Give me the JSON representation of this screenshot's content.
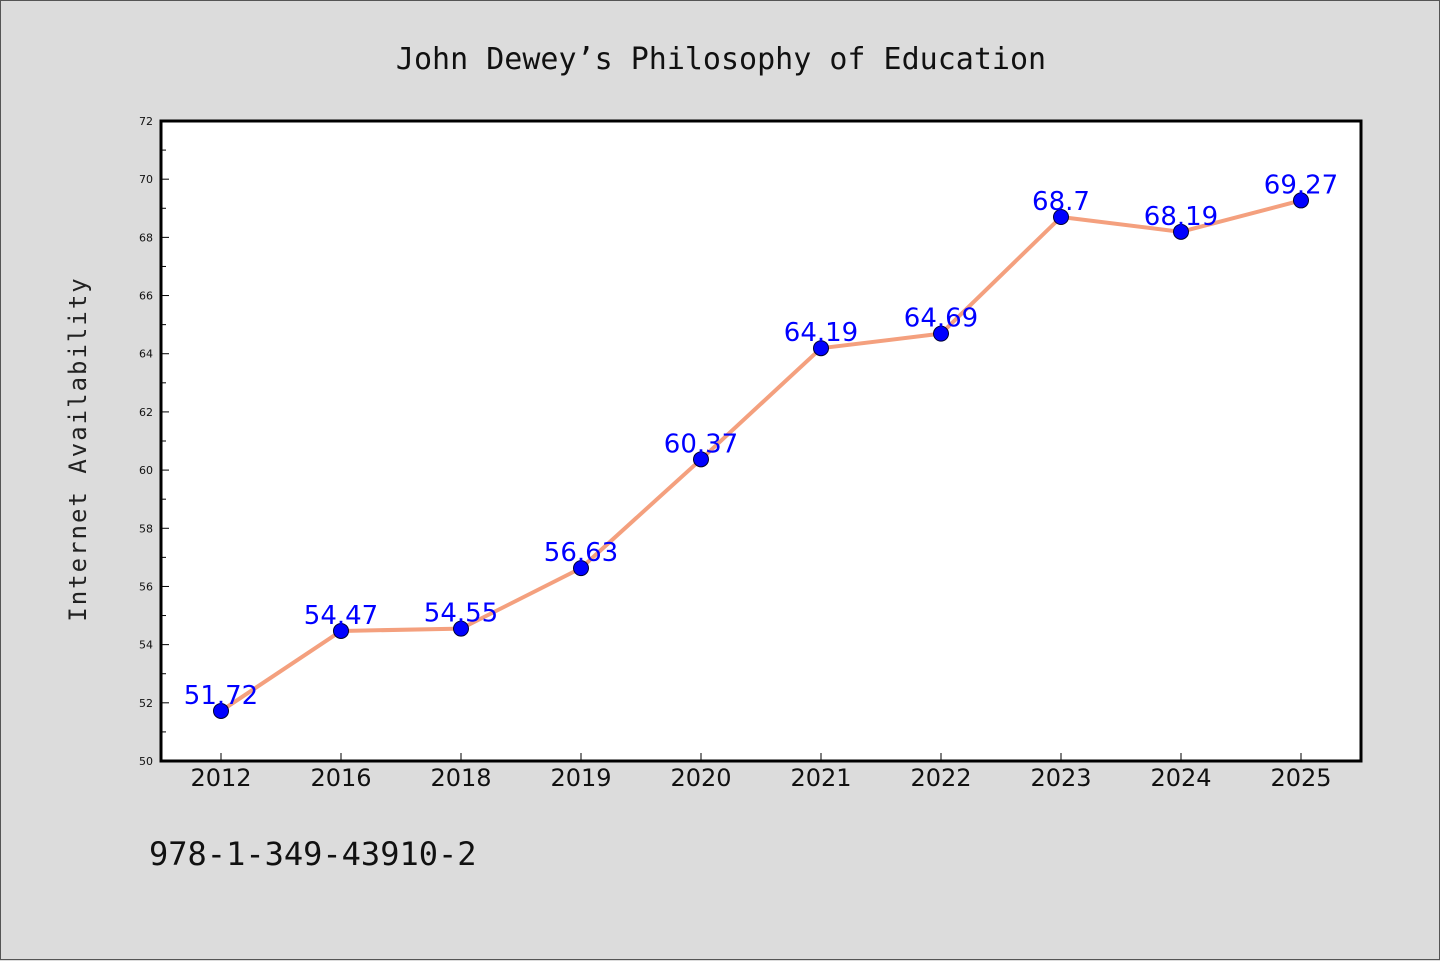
{
  "chart_data": {
    "type": "line",
    "title": "John Dewey’s Philosophy of Education",
    "xlabel": "",
    "ylabel": "Internet Availability",
    "categories": [
      "2012",
      "2016",
      "2018",
      "2019",
      "2020",
      "2021",
      "2022",
      "2023",
      "2024",
      "2025"
    ],
    "series": [
      {
        "values": [
          51.72,
          54.47,
          54.55,
          56.63,
          60.37,
          64.19,
          64.69,
          68.7,
          68.19,
          69.27
        ],
        "labels": [
          "51.72",
          "54.47",
          "54.55",
          "56.63",
          "60.37",
          "64.19",
          "64.69",
          "68.7",
          "68.19",
          "69.27"
        ]
      }
    ],
    "ylim": [
      50,
      72
    ],
    "yticks": [
      50,
      52,
      54,
      56,
      58,
      60,
      62,
      64,
      66,
      68,
      70,
      72
    ],
    "grid": false,
    "legend": "none",
    "colors": {
      "line": "#f4a07e",
      "marker": "#0000ff",
      "data_label": "#0000ff",
      "plot_background": "#ffffff",
      "figure_background": "#dcdcdc"
    }
  },
  "footer": {
    "isbn": "978-1-349-43910-2"
  }
}
